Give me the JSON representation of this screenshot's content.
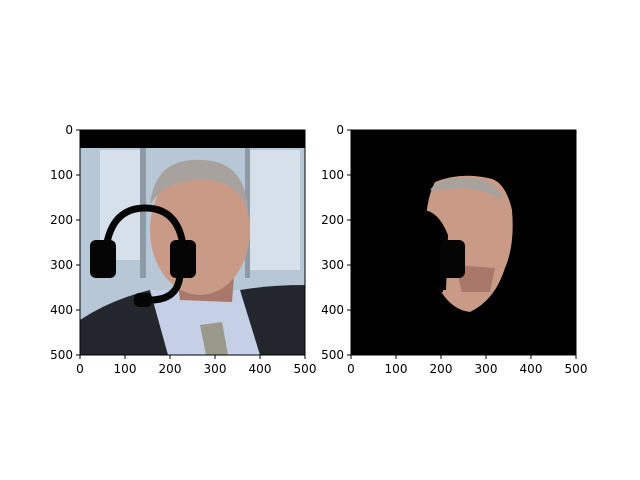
{
  "chart_data": [
    {
      "type": "image",
      "xlim": [
        0,
        500
      ],
      "ylim": [
        500,
        0
      ],
      "xticks": [
        0,
        100,
        200,
        300,
        400,
        500
      ],
      "yticks": [
        0,
        100,
        200,
        300,
        400,
        500
      ],
      "xtick_labels": [
        "0",
        "100",
        "200",
        "300",
        "400",
        "500"
      ],
      "ytick_labels": [
        "0",
        "100",
        "200",
        "300",
        "400",
        "500"
      ],
      "content": "portrait photo of smiling man with black headset overlay"
    },
    {
      "type": "image",
      "xlim": [
        0,
        500
      ],
      "ylim": [
        500,
        0
      ],
      "xticks": [
        0,
        100,
        200,
        300,
        400,
        500
      ],
      "yticks": [
        0,
        100,
        200,
        300,
        400,
        500
      ],
      "xtick_labels": [
        "0",
        "100",
        "200",
        "300",
        "400",
        "500"
      ],
      "ytick_labels": [
        "0",
        "100",
        "200",
        "300",
        "400",
        "500"
      ],
      "content": "segmented face region on black background"
    }
  ],
  "colors": {
    "background": "#000000",
    "sky": "#b7c7d6",
    "window": "#d5e0ea",
    "frame": "#8e9ba6",
    "skin": "#c99b86",
    "skin_shadow": "#a9786a",
    "hair": "#a7a29e",
    "suit": "#23262d",
    "shirt": "#c5cfe6",
    "tie": "#9a9a8c",
    "headset": "#050505"
  },
  "icons": [
    "headset-icon"
  ]
}
